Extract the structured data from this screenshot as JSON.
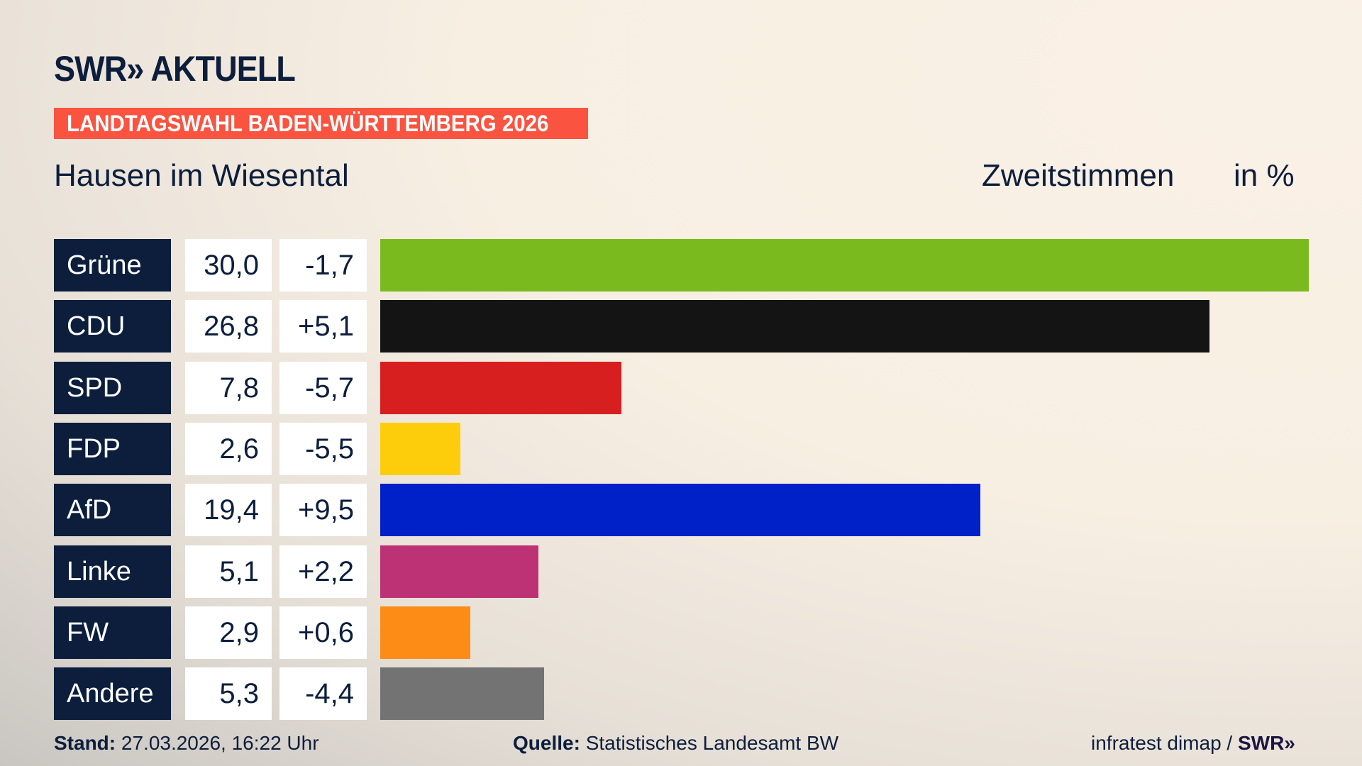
{
  "header": {
    "logo": "SWR» AKTUELL",
    "banner": "LANDTAGSWAHL BADEN-WÜRTTEMBERG 2026",
    "location": "Hausen im Wiesental",
    "vote_type": "Zweitstimmen",
    "unit": "in %"
  },
  "chart_data": {
    "type": "bar",
    "orientation": "horizontal",
    "categories": [
      "Grüne",
      "CDU",
      "SPD",
      "FDP",
      "AfD",
      "Linke",
      "FW",
      "Andere"
    ],
    "values": [
      30.0,
      26.8,
      7.8,
      2.6,
      19.4,
      5.1,
      2.9,
      5.3
    ],
    "value_labels": [
      "30,0",
      "26,8",
      "7,8",
      "2,6",
      "19,4",
      "5,1",
      "2,9",
      "5,3"
    ],
    "change_labels": [
      "-1,7",
      "+5,1",
      "-5,7",
      "-5,5",
      "+9,5",
      "+2,2",
      "+0,6",
      "-4,4"
    ],
    "changes": [
      -1.7,
      5.1,
      -5.7,
      -5.5,
      9.5,
      2.2,
      0.6,
      -4.4
    ],
    "colors": [
      "#7aba1e",
      "#141414",
      "#d81f1f",
      "#fdcd0c",
      "#0020c8",
      "#bd3175",
      "#fd8c17",
      "#737373"
    ],
    "xlim": [
      0,
      30.0
    ]
  },
  "footer": {
    "stand_label": "Stand:",
    "stand_value": "27.03.2026, 16:22 Uhr",
    "source_label": "Quelle:",
    "source_value": "Statistisches Landesamt BW",
    "credit": "infratest dimap / ",
    "credit_logo": "SWR»"
  }
}
